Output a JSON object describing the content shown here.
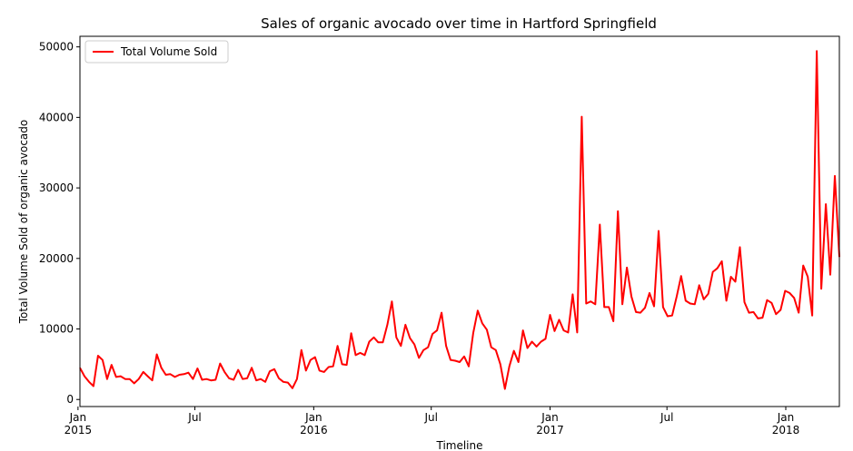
{
  "chart_data": {
    "type": "line",
    "title": "Sales of organic avocado over time in Hartford Springfield",
    "xlabel": "Timeline",
    "ylabel": "Total Volume Sold of organic avocado",
    "x_start": "2015-01-04",
    "x_step_days": 7,
    "xlim": [
      "2015-01-04",
      "2018-03-25"
    ],
    "ylim": [
      -1000,
      51500
    ],
    "yticks": [
      0,
      10000,
      20000,
      30000,
      40000,
      50000
    ],
    "ytick_labels": [
      "0",
      "10000",
      "20000",
      "30000",
      "40000",
      "50000"
    ],
    "xticks": [
      {
        "date": "2015-01-01",
        "labels": [
          "Jan",
          "2015"
        ]
      },
      {
        "date": "2015-07-01",
        "labels": [
          "Jul"
        ]
      },
      {
        "date": "2016-01-01",
        "labels": [
          "Jan",
          "2016"
        ]
      },
      {
        "date": "2016-07-01",
        "labels": [
          "Jul"
        ]
      },
      {
        "date": "2017-01-01",
        "labels": [
          "Jan",
          "2017"
        ]
      },
      {
        "date": "2017-07-01",
        "labels": [
          "Jul"
        ]
      },
      {
        "date": "2018-01-01",
        "labels": [
          "Jan",
          "2018"
        ]
      }
    ],
    "legend": {
      "position": "top-left",
      "entries": [
        "Total Volume Sold"
      ]
    },
    "grid": false,
    "series": [
      {
        "name": "Total Volume Sold",
        "color": "#ff0000",
        "values": [
          4500,
          3300,
          2500,
          1900,
          6200,
          5600,
          2900,
          4900,
          3200,
          3300,
          2900,
          2900,
          2300,
          2900,
          3900,
          3300,
          2700,
          6400,
          4500,
          3500,
          3600,
          3200,
          3500,
          3600,
          3800,
          2900,
          4400,
          2800,
          2900,
          2700,
          2800,
          5100,
          3900,
          3000,
          2800,
          4200,
          2900,
          3000,
          4500,
          2700,
          2900,
          2500,
          4000,
          4300,
          3000,
          2500,
          2400,
          1600,
          2900,
          7000,
          4100,
          5600,
          6000,
          4100,
          3900,
          4600,
          4700,
          7600,
          5000,
          4900,
          9400,
          6300,
          6600,
          6300,
          8200,
          8800,
          8100,
          8100,
          10600,
          13900,
          8800,
          7600,
          10600,
          8700,
          7800,
          5900,
          7000,
          7400,
          9300,
          9800,
          12300,
          7600,
          5600,
          5500,
          5300,
          6100,
          4700,
          9400,
          12600,
          10800,
          9900,
          7400,
          7000,
          5000,
          1500,
          4700,
          6900,
          5300,
          9800,
          7300,
          8200,
          7500,
          8200,
          8600,
          12000,
          9700,
          11300,
          9800,
          9500,
          14900,
          9500,
          40100,
          13600,
          13900,
          13500,
          24800,
          13100,
          13100,
          11100,
          26700,
          13500,
          18700,
          14600,
          12400,
          12300,
          13000,
          15100,
          13200,
          23900,
          13100,
          11800,
          11900,
          14600,
          17500,
          14000,
          13600,
          13500,
          16200,
          14200,
          15000,
          18100,
          18600,
          19600,
          14000,
          17400,
          16700,
          21600,
          13800,
          12300,
          12400,
          11500,
          11600,
          14100,
          13700,
          12100,
          12700,
          15400,
          15100,
          14400,
          12300,
          19000,
          17400,
          11900,
          49400,
          15700,
          27700,
          17700,
          31700,
          20200
        ]
      }
    ]
  }
}
